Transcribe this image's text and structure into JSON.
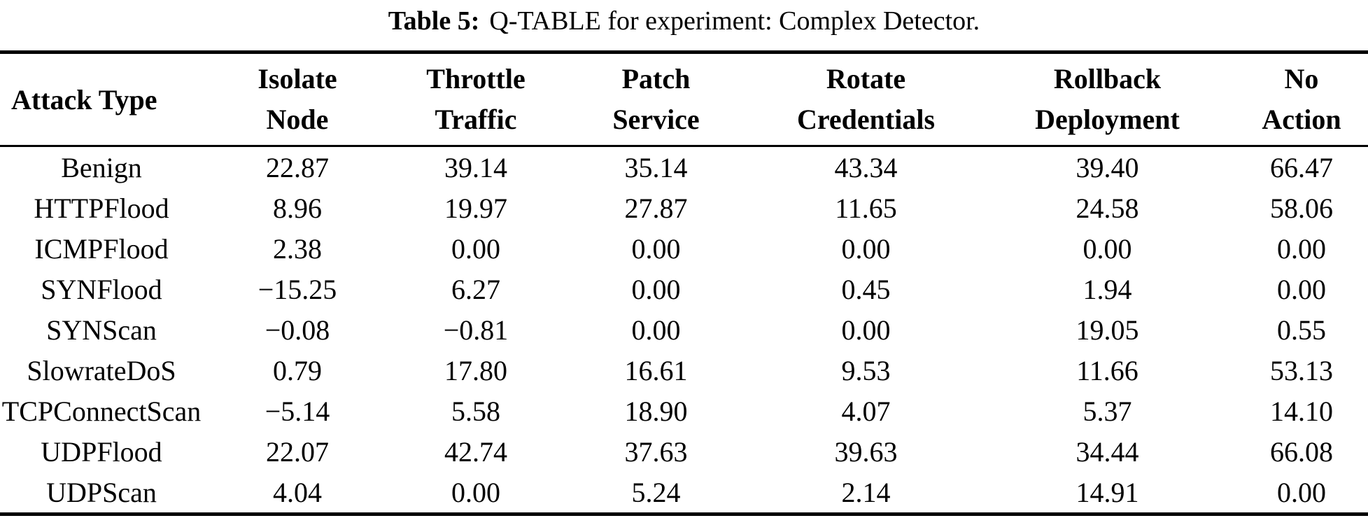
{
  "caption": {
    "label": "Table 5:",
    "text": "Q-TABLE for experiment: Complex Detector."
  },
  "table": {
    "header": {
      "attack_type": "Attack Type",
      "columns": [
        {
          "line1": "Isolate",
          "line2": "Node"
        },
        {
          "line1": "Throttle",
          "line2": "Traffic"
        },
        {
          "line1": "Patch",
          "line2": "Service"
        },
        {
          "line1": "Rotate",
          "line2": "Credentials"
        },
        {
          "line1": "Rollback",
          "line2": "Deployment"
        },
        {
          "line1": "No",
          "line2": "Action"
        }
      ]
    },
    "rows": [
      {
        "attack": "Benign",
        "values": [
          "22.87",
          "39.14",
          "35.14",
          "43.34",
          "39.40",
          "66.47"
        ]
      },
      {
        "attack": "HTTPFlood",
        "values": [
          "8.96",
          "19.97",
          "27.87",
          "11.65",
          "24.58",
          "58.06"
        ]
      },
      {
        "attack": "ICMPFlood",
        "values": [
          "2.38",
          "0.00",
          "0.00",
          "0.00",
          "0.00",
          "0.00"
        ]
      },
      {
        "attack": "SYNFlood",
        "values": [
          "−15.25",
          "6.27",
          "0.00",
          "0.45",
          "1.94",
          "0.00"
        ]
      },
      {
        "attack": "SYNScan",
        "values": [
          "−0.08",
          "−0.81",
          "0.00",
          "0.00",
          "19.05",
          "0.55"
        ]
      },
      {
        "attack": "SlowrateDoS",
        "values": [
          "0.79",
          "17.80",
          "16.61",
          "9.53",
          "11.66",
          "53.13"
        ]
      },
      {
        "attack": "TCPConnectScan",
        "values": [
          "−5.14",
          "5.58",
          "18.90",
          "4.07",
          "5.37",
          "14.10"
        ]
      },
      {
        "attack": "UDPFlood",
        "values": [
          "22.07",
          "42.74",
          "37.63",
          "39.63",
          "34.44",
          "66.08"
        ]
      },
      {
        "attack": "UDPScan",
        "values": [
          "4.04",
          "0.00",
          "5.24",
          "2.14",
          "14.91",
          "0.00"
        ]
      }
    ]
  },
  "colors": {
    "text": "#000000",
    "background": "#ffffff",
    "rule": "#000000"
  }
}
